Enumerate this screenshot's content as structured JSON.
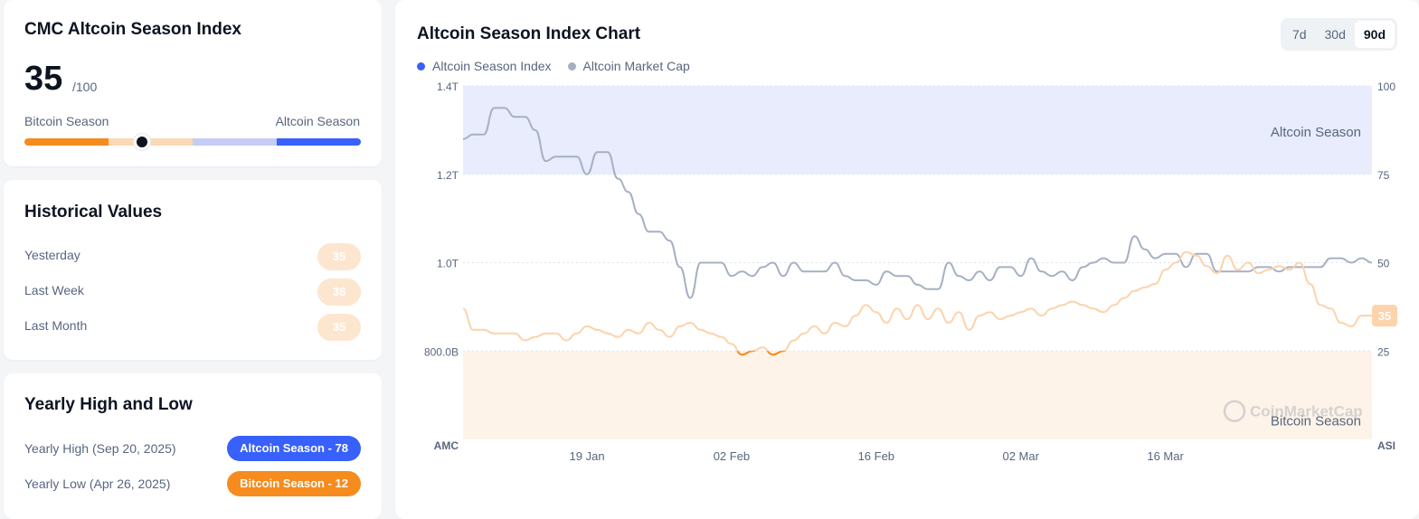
{
  "index_card": {
    "title": "CMC Altcoin Season Index",
    "value": "35",
    "max": "/100",
    "left_label": "Bitcoin Season",
    "right_label": "Altcoin Season",
    "gauge_value": 35,
    "gauge_colors": [
      "#f68b1e",
      "#fcd8b4",
      "#c5ccf5",
      "#3861fb"
    ]
  },
  "historical": {
    "title": "Historical Values",
    "rows": [
      {
        "label": "Yesterday",
        "value": "35"
      },
      {
        "label": "Last Week",
        "value": "38"
      },
      {
        "label": "Last Month",
        "value": "35"
      }
    ]
  },
  "yearly": {
    "title": "Yearly High and Low",
    "high_label": "Yearly High (Sep 20, 2025)",
    "high_value": "Altcoin Season - 78",
    "high_color": "#3861fb",
    "low_label": "Yearly Low (Apr 26, 2025)",
    "low_value": "Bitcoin Season - 12",
    "low_color": "#f68b1e"
  },
  "chart_card": {
    "title": "Altcoin Season Index Chart",
    "range_tabs": [
      "7d",
      "30d",
      "90d"
    ],
    "active_range": "90d",
    "watermark": "CoinMarketCap"
  },
  "chart_data": {
    "type": "line",
    "title": "Altcoin Season Index Chart",
    "x_start": "2025-01-07",
    "x_end": "2025-04-05",
    "x_ticks": [
      "19 Jan",
      "02 Feb",
      "16 Feb",
      "02 Mar",
      "16 Mar"
    ],
    "x_tick_dates": [
      "2025-01-19",
      "2025-02-02",
      "2025-02-16",
      "2025-03-02",
      "2025-03-16"
    ],
    "left_axis": {
      "label": "AMC",
      "ticks": [
        "1.4T",
        "1.2T",
        "1.0T",
        "800.0B"
      ],
      "tick_values": [
        1400000000000.0,
        1200000000000.0,
        1000000000000.0,
        800000000000.0
      ],
      "range": [
        600000000000.0,
        1400000000000.0
      ]
    },
    "right_axis": {
      "label": "ASI",
      "ticks": [
        "100",
        "75",
        "50",
        "25"
      ],
      "tick_values": [
        100,
        75,
        50,
        25
      ],
      "range": [
        0,
        100
      ]
    },
    "zones": [
      {
        "name": "Altcoin Season",
        "from": 75,
        "to": 100,
        "color": "#e8ecfd"
      },
      {
        "name": "Bitcoin Season",
        "from": 0,
        "to": 25,
        "color": "#fef3e8"
      }
    ],
    "current_value_label": "35",
    "series": [
      {
        "name": "Altcoin Season Index",
        "axis": "right",
        "color": "#f68b1e",
        "points": [
          [
            "2025-01-07",
            37
          ],
          [
            "2025-01-08",
            31
          ],
          [
            "2025-01-09",
            31
          ],
          [
            "2025-01-10",
            30
          ],
          [
            "2025-01-11",
            30
          ],
          [
            "2025-01-12",
            30
          ],
          [
            "2025-01-13",
            28
          ],
          [
            "2025-01-14",
            29
          ],
          [
            "2025-01-15",
            30
          ],
          [
            "2025-01-16",
            30
          ],
          [
            "2025-01-17",
            28
          ],
          [
            "2025-01-18",
            30
          ],
          [
            "2025-01-19",
            32
          ],
          [
            "2025-01-20",
            31
          ],
          [
            "2025-01-21",
            30
          ],
          [
            "2025-01-22",
            29
          ],
          [
            "2025-01-23",
            31
          ],
          [
            "2025-01-24",
            30
          ],
          [
            "2025-01-25",
            33
          ],
          [
            "2025-01-26",
            31
          ],
          [
            "2025-01-27",
            29
          ],
          [
            "2025-01-28",
            32
          ],
          [
            "2025-01-29",
            33
          ],
          [
            "2025-01-30",
            31
          ],
          [
            "2025-01-31",
            30
          ],
          [
            "2025-02-01",
            29
          ],
          [
            "2025-02-02",
            27
          ],
          [
            "2025-02-03",
            24
          ],
          [
            "2025-02-04",
            25
          ],
          [
            "2025-02-05",
            26
          ],
          [
            "2025-02-06",
            24
          ],
          [
            "2025-02-07",
            25
          ],
          [
            "2025-02-08",
            28
          ],
          [
            "2025-02-09",
            30
          ],
          [
            "2025-02-10",
            32
          ],
          [
            "2025-02-11",
            30
          ],
          [
            "2025-02-12",
            33
          ],
          [
            "2025-02-13",
            32
          ],
          [
            "2025-02-14",
            35
          ],
          [
            "2025-02-15",
            38
          ],
          [
            "2025-02-16",
            36
          ],
          [
            "2025-02-17",
            33
          ],
          [
            "2025-02-18",
            37
          ],
          [
            "2025-02-19",
            34
          ],
          [
            "2025-02-20",
            38
          ],
          [
            "2025-02-21",
            34
          ],
          [
            "2025-02-22",
            37
          ],
          [
            "2025-02-23",
            33
          ],
          [
            "2025-02-24",
            36
          ],
          [
            "2025-02-25",
            31
          ],
          [
            "2025-02-26",
            35
          ],
          [
            "2025-02-27",
            36
          ],
          [
            "2025-02-28",
            34
          ],
          [
            "2025-03-01",
            35
          ],
          [
            "2025-03-02",
            36
          ],
          [
            "2025-03-03",
            37
          ],
          [
            "2025-03-04",
            35
          ],
          [
            "2025-03-05",
            37
          ],
          [
            "2025-03-06",
            38
          ],
          [
            "2025-03-07",
            39
          ],
          [
            "2025-03-08",
            38
          ],
          [
            "2025-03-09",
            37
          ],
          [
            "2025-03-10",
            36
          ],
          [
            "2025-03-11",
            38
          ],
          [
            "2025-03-12",
            40
          ],
          [
            "2025-03-13",
            42
          ],
          [
            "2025-03-14",
            43
          ],
          [
            "2025-03-15",
            44
          ],
          [
            "2025-03-16",
            48
          ],
          [
            "2025-03-17",
            50
          ],
          [
            "2025-03-18",
            53
          ],
          [
            "2025-03-19",
            52
          ],
          [
            "2025-03-20",
            49
          ],
          [
            "2025-03-21",
            47
          ],
          [
            "2025-03-22",
            52
          ],
          [
            "2025-03-23",
            48
          ],
          [
            "2025-03-24",
            50
          ],
          [
            "2025-03-25",
            47
          ],
          [
            "2025-03-26",
            48
          ],
          [
            "2025-03-27",
            49
          ],
          [
            "2025-03-28",
            48
          ],
          [
            "2025-03-29",
            50
          ],
          [
            "2025-03-30",
            44
          ],
          [
            "2025-03-31",
            38
          ],
          [
            "2025-04-01",
            37
          ],
          [
            "2025-04-02",
            33
          ],
          [
            "2025-04-03",
            32
          ],
          [
            "2025-04-04",
            35
          ],
          [
            "2025-04-05",
            35
          ]
        ]
      },
      {
        "name": "Altcoin Market Cap",
        "axis": "left",
        "color": "#a6b0c3",
        "points": [
          [
            "2025-01-07",
            1280000000000.0
          ],
          [
            "2025-01-08",
            1290000000000.0
          ],
          [
            "2025-01-09",
            1290000000000.0
          ],
          [
            "2025-01-10",
            1350000000000.0
          ],
          [
            "2025-01-11",
            1350000000000.0
          ],
          [
            "2025-01-12",
            1330000000000.0
          ],
          [
            "2025-01-13",
            1330000000000.0
          ],
          [
            "2025-01-14",
            1300000000000.0
          ],
          [
            "2025-01-15",
            1230000000000.0
          ],
          [
            "2025-01-16",
            1240000000000.0
          ],
          [
            "2025-01-17",
            1240000000000.0
          ],
          [
            "2025-01-18",
            1240000000000.0
          ],
          [
            "2025-01-19",
            1200000000000.0
          ],
          [
            "2025-01-20",
            1250000000000.0
          ],
          [
            "2025-01-21",
            1250000000000.0
          ],
          [
            "2025-01-22",
            1190000000000.0
          ],
          [
            "2025-01-23",
            1160000000000.0
          ],
          [
            "2025-01-24",
            1110000000000.0
          ],
          [
            "2025-01-25",
            1070000000000.0
          ],
          [
            "2025-01-26",
            1070000000000.0
          ],
          [
            "2025-01-27",
            1050000000000.0
          ],
          [
            "2025-01-28",
            990000000000.0
          ],
          [
            "2025-01-29",
            920000000000.0
          ],
          [
            "2025-01-30",
            1000000000000.0
          ],
          [
            "2025-01-31",
            1000000000000.0
          ],
          [
            "2025-02-01",
            1000000000000.0
          ],
          [
            "2025-02-02",
            970000000000.0
          ],
          [
            "2025-02-03",
            980000000000.0
          ],
          [
            "2025-02-04",
            970000000000.0
          ],
          [
            "2025-02-05",
            990000000000.0
          ],
          [
            "2025-02-06",
            1000000000000.0
          ],
          [
            "2025-02-07",
            970000000000.0
          ],
          [
            "2025-02-08",
            1000000000000.0
          ],
          [
            "2025-02-09",
            980000000000.0
          ],
          [
            "2025-02-10",
            980000000000.0
          ],
          [
            "2025-02-11",
            980000000000.0
          ],
          [
            "2025-02-12",
            1000000000000.0
          ],
          [
            "2025-02-13",
            970000000000.0
          ],
          [
            "2025-02-14",
            960000000000.0
          ],
          [
            "2025-02-15",
            960000000000.0
          ],
          [
            "2025-02-16",
            950000000000.0
          ],
          [
            "2025-02-17",
            980000000000.0
          ],
          [
            "2025-02-18",
            970000000000.0
          ],
          [
            "2025-02-19",
            970000000000.0
          ],
          [
            "2025-02-20",
            950000000000.0
          ],
          [
            "2025-02-21",
            940000000000.0
          ],
          [
            "2025-02-22",
            940000000000.0
          ],
          [
            "2025-02-23",
            1000000000000.0
          ],
          [
            "2025-02-24",
            970000000000.0
          ],
          [
            "2025-02-25",
            960000000000.0
          ],
          [
            "2025-02-26",
            980000000000.0
          ],
          [
            "2025-02-27",
            960000000000.0
          ],
          [
            "2025-02-28",
            990000000000.0
          ],
          [
            "2025-03-01",
            990000000000.0
          ],
          [
            "2025-03-02",
            970000000000.0
          ],
          [
            "2025-03-03",
            1010000000000.0
          ],
          [
            "2025-03-04",
            980000000000.0
          ],
          [
            "2025-03-05",
            970000000000.0
          ],
          [
            "2025-03-06",
            980000000000.0
          ],
          [
            "2025-03-07",
            960000000000.0
          ],
          [
            "2025-03-08",
            990000000000.0
          ],
          [
            "2025-03-09",
            1000000000000.0
          ],
          [
            "2025-03-10",
            1010000000000.0
          ],
          [
            "2025-03-11",
            1000000000000.0
          ],
          [
            "2025-03-12",
            1000000000000.0
          ],
          [
            "2025-03-13",
            1060000000000.0
          ],
          [
            "2025-03-14",
            1030000000000.0
          ],
          [
            "2025-03-15",
            1010000000000.0
          ],
          [
            "2025-03-16",
            1020000000000.0
          ],
          [
            "2025-03-17",
            1020000000000.0
          ],
          [
            "2025-03-18",
            990000000000.0
          ],
          [
            "2025-03-19",
            1020000000000.0
          ],
          [
            "2025-03-20",
            1020000000000.0
          ],
          [
            "2025-03-21",
            980000000000.0
          ],
          [
            "2025-03-22",
            980000000000.0
          ],
          [
            "2025-03-23",
            980000000000.0
          ],
          [
            "2025-03-24",
            980000000000.0
          ],
          [
            "2025-03-25",
            990000000000.0
          ],
          [
            "2025-03-26",
            990000000000.0
          ],
          [
            "2025-03-27",
            980000000000.0
          ],
          [
            "2025-03-28",
            990000000000.0
          ],
          [
            "2025-03-29",
            990000000000.0
          ],
          [
            "2025-03-30",
            990000000000.0
          ],
          [
            "2025-03-31",
            990000000000.0
          ],
          [
            "2025-04-01",
            1010000000000.0
          ],
          [
            "2025-04-02",
            1010000000000.0
          ],
          [
            "2025-04-03",
            1000000000000.0
          ],
          [
            "2025-04-04",
            1010000000000.0
          ],
          [
            "2025-04-05",
            1000000000000.0
          ]
        ]
      }
    ]
  }
}
